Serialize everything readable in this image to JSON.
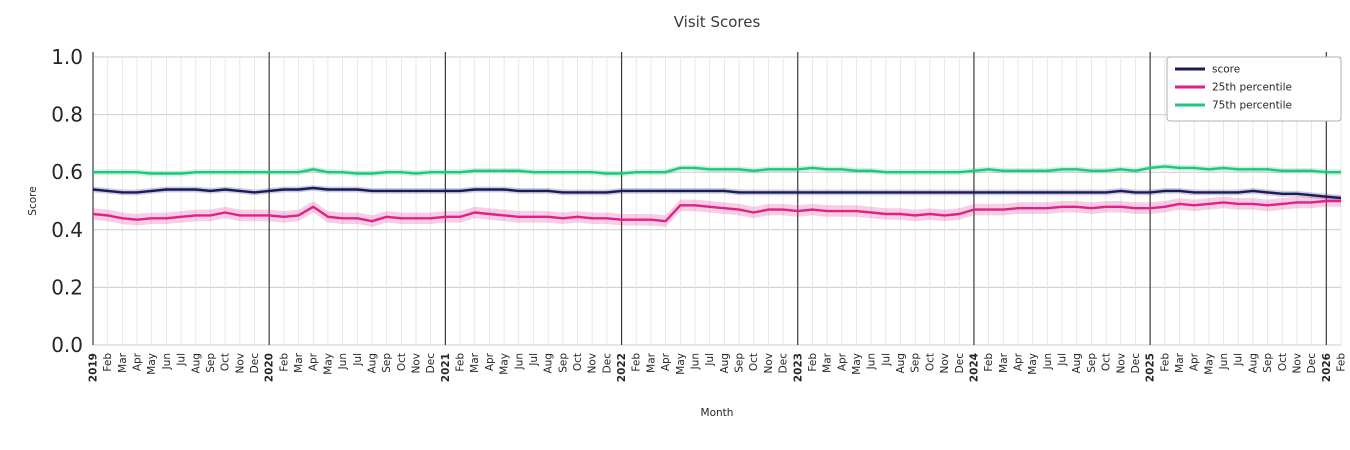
{
  "chart_data": {
    "type": "line",
    "title": "Visit Scores",
    "xlabel": "Month",
    "ylabel": "Score",
    "ylim": [
      0.0,
      1.0
    ],
    "yticks": [
      0.0,
      0.2,
      0.4,
      0.6,
      0.8,
      1.0
    ],
    "grid": true,
    "legend_position": "upper right",
    "colors": {
      "score": "#1a1a5e",
      "p25": "#df2188",
      "p75": "#20c57f",
      "grid_minor": "#e2e2e2",
      "grid_major": "#cccccc",
      "year_line": "#3a3a3a",
      "text": "#262626",
      "title_text": "#3b3b3b",
      "legend_border": "#b0b0b0"
    },
    "x_tick_labels": [
      "2019",
      "Feb",
      "Mar",
      "Apr",
      "May",
      "Jun",
      "Jul",
      "Aug",
      "Sep",
      "Oct",
      "Nov",
      "Dec",
      "2020",
      "Feb",
      "Mar",
      "Apr",
      "May",
      "Jun",
      "Jul",
      "Aug",
      "Sep",
      "Oct",
      "Nov",
      "Dec",
      "2021",
      "Feb",
      "Mar",
      "Apr",
      "May",
      "Jun",
      "Jul",
      "Aug",
      "Sep",
      "Oct",
      "Nov",
      "Dec",
      "2022",
      "Feb",
      "Mar",
      "Apr",
      "May",
      "Jun",
      "Jul",
      "Aug",
      "Sep",
      "Oct",
      "Nov",
      "Dec",
      "2023",
      "Feb",
      "Mar",
      "Apr",
      "May",
      "Jun",
      "Jul",
      "Aug",
      "Sep",
      "Oct",
      "Nov",
      "Dec",
      "2024",
      "Feb",
      "Mar",
      "Apr",
      "May",
      "Jun",
      "Jul",
      "Aug",
      "Sep",
      "Oct",
      "Nov",
      "Dec",
      "2025",
      "Feb",
      "Mar",
      "Apr",
      "May",
      "Jun",
      "Jul",
      "Aug",
      "Sep",
      "Oct",
      "Nov",
      "Dec",
      "2026",
      "Feb"
    ],
    "series": [
      {
        "name": "score",
        "color_key": "score",
        "band_halfwidth": 0.01,
        "values": [
          0.54,
          0.535,
          0.53,
          0.53,
          0.535,
          0.54,
          0.54,
          0.54,
          0.535,
          0.54,
          0.535,
          0.53,
          0.535,
          0.54,
          0.54,
          0.545,
          0.54,
          0.54,
          0.54,
          0.535,
          0.535,
          0.535,
          0.535,
          0.535,
          0.535,
          0.535,
          0.54,
          0.54,
          0.54,
          0.535,
          0.535,
          0.535,
          0.53,
          0.53,
          0.53,
          0.53,
          0.535,
          0.535,
          0.535,
          0.535,
          0.535,
          0.535,
          0.535,
          0.535,
          0.53,
          0.53,
          0.53,
          0.53,
          0.53,
          0.53,
          0.53,
          0.53,
          0.53,
          0.53,
          0.53,
          0.53,
          0.53,
          0.53,
          0.53,
          0.53,
          0.53,
          0.53,
          0.53,
          0.53,
          0.53,
          0.53,
          0.53,
          0.53,
          0.53,
          0.53,
          0.535,
          0.53,
          0.53,
          0.535,
          0.535,
          0.53,
          0.53,
          0.53,
          0.53,
          0.535,
          0.53,
          0.525,
          0.525,
          0.52,
          0.515,
          0.51
        ]
      },
      {
        "name": "25th percentile",
        "color_key": "p25",
        "band_halfwidth": 0.02,
        "values": [
          0.455,
          0.45,
          0.44,
          0.435,
          0.44,
          0.44,
          0.445,
          0.45,
          0.45,
          0.46,
          0.45,
          0.45,
          0.45,
          0.445,
          0.45,
          0.48,
          0.445,
          0.44,
          0.44,
          0.43,
          0.445,
          0.44,
          0.44,
          0.44,
          0.445,
          0.445,
          0.46,
          0.455,
          0.45,
          0.445,
          0.445,
          0.445,
          0.44,
          0.445,
          0.44,
          0.44,
          0.435,
          0.435,
          0.435,
          0.43,
          0.485,
          0.485,
          0.48,
          0.475,
          0.47,
          0.46,
          0.47,
          0.47,
          0.465,
          0.47,
          0.465,
          0.465,
          0.465,
          0.46,
          0.455,
          0.455,
          0.45,
          0.455,
          0.45,
          0.455,
          0.47,
          0.47,
          0.47,
          0.475,
          0.475,
          0.475,
          0.48,
          0.48,
          0.475,
          0.48,
          0.48,
          0.475,
          0.475,
          0.48,
          0.49,
          0.485,
          0.49,
          0.495,
          0.49,
          0.49,
          0.485,
          0.49,
          0.495,
          0.495,
          0.5,
          0.5
        ]
      },
      {
        "name": "75th percentile",
        "color_key": "p75",
        "band_halfwidth": 0.01,
        "values": [
          0.6,
          0.6,
          0.6,
          0.6,
          0.595,
          0.595,
          0.595,
          0.6,
          0.6,
          0.6,
          0.6,
          0.6,
          0.6,
          0.6,
          0.6,
          0.61,
          0.6,
          0.6,
          0.595,
          0.595,
          0.6,
          0.6,
          0.595,
          0.6,
          0.6,
          0.6,
          0.605,
          0.605,
          0.605,
          0.605,
          0.6,
          0.6,
          0.6,
          0.6,
          0.6,
          0.595,
          0.595,
          0.6,
          0.6,
          0.6,
          0.615,
          0.615,
          0.61,
          0.61,
          0.61,
          0.605,
          0.61,
          0.61,
          0.61,
          0.615,
          0.61,
          0.61,
          0.605,
          0.605,
          0.6,
          0.6,
          0.6,
          0.6,
          0.6,
          0.6,
          0.605,
          0.61,
          0.605,
          0.605,
          0.605,
          0.605,
          0.61,
          0.61,
          0.605,
          0.605,
          0.61,
          0.605,
          0.615,
          0.62,
          0.615,
          0.615,
          0.61,
          0.615,
          0.61,
          0.61,
          0.61,
          0.605,
          0.605,
          0.605,
          0.6,
          0.6
        ]
      }
    ],
    "legend_entries": [
      "score",
      "25th percentile",
      "75th percentile"
    ]
  }
}
